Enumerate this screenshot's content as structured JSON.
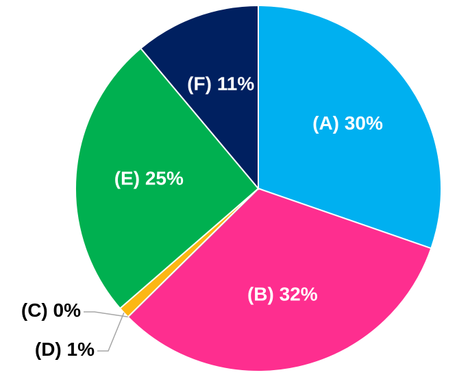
{
  "chart_data": {
    "type": "pie",
    "categories": [
      "(A)",
      "(B)",
      "(C)",
      "(D)",
      "(E)",
      "(F)"
    ],
    "values": [
      30,
      32,
      0,
      1,
      25,
      11
    ],
    "value_labels": [
      "30%",
      "32%",
      "0%",
      "1%",
      "25%",
      "11%"
    ],
    "colors": [
      "#00b0f0",
      "#fe2e8f",
      "#a6a6a6",
      "#fcb714",
      "#00b050",
      "#002060"
    ]
  }
}
